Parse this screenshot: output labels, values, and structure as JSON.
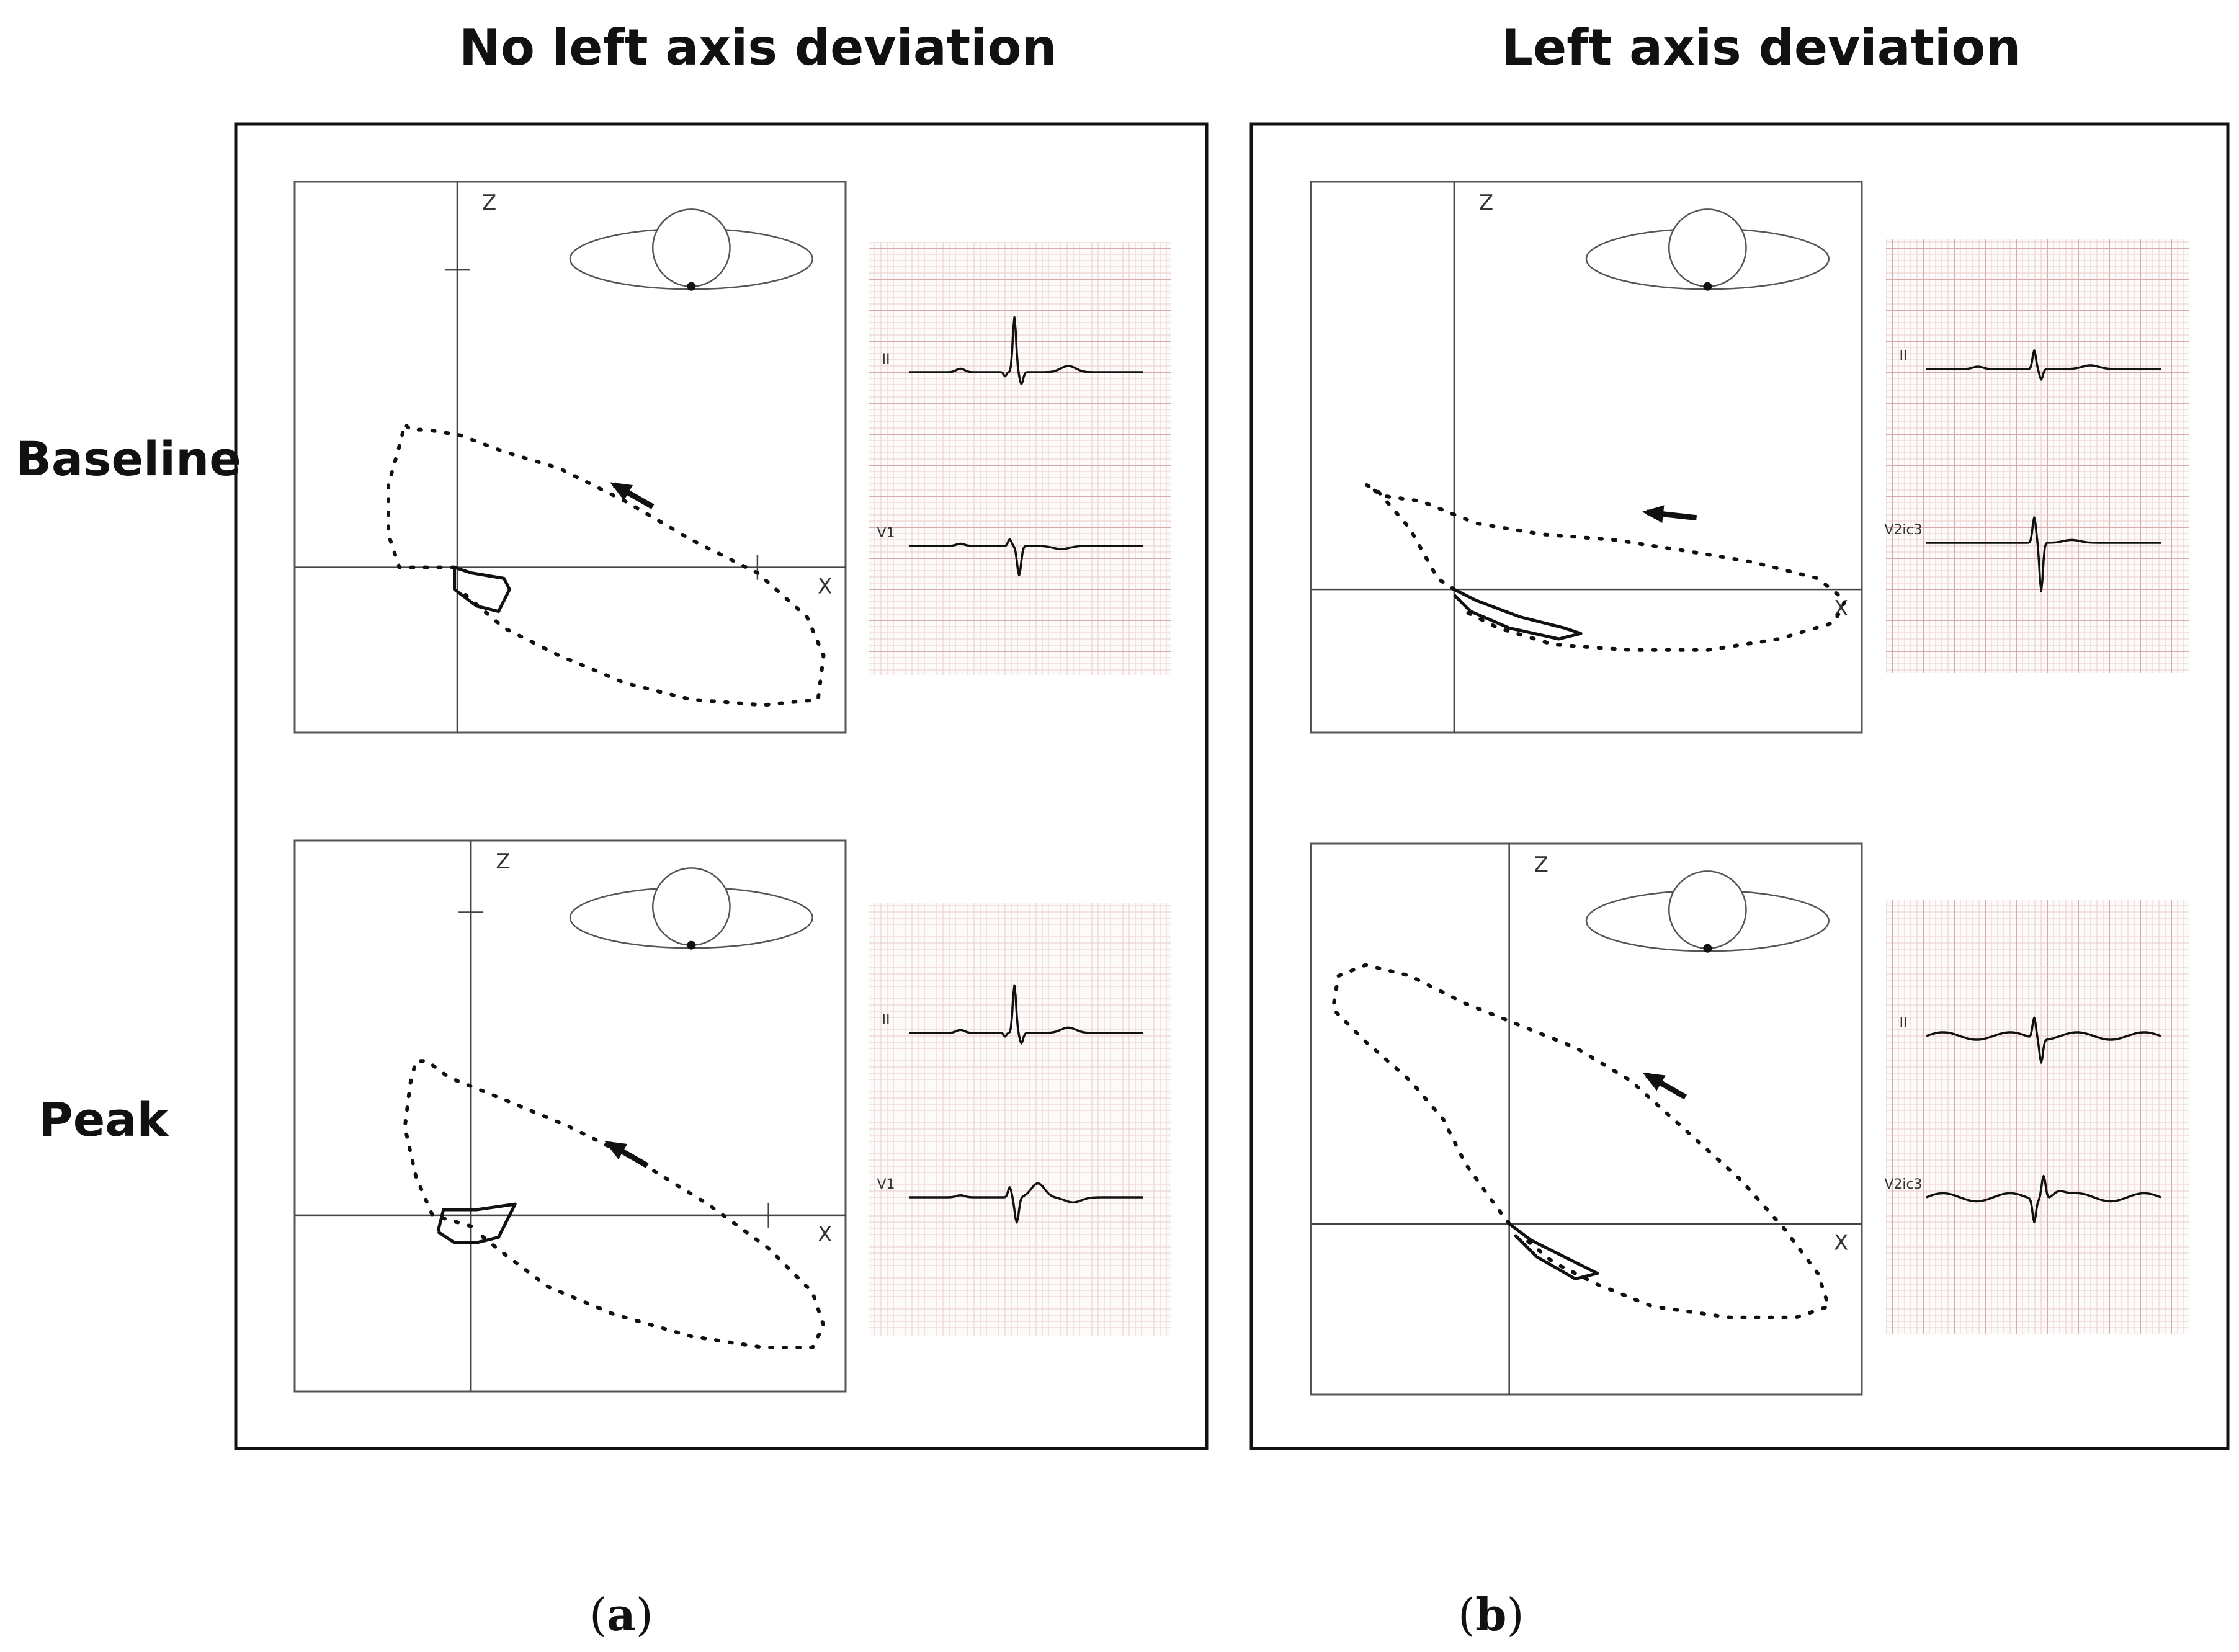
{
  "columns": [
    {
      "title": "No left axis deviation",
      "caption_letter": "a"
    },
    {
      "title": "Left axis deviation",
      "caption_letter": "b"
    }
  ],
  "rows": [
    {
      "label": "Baseline"
    },
    {
      "label": "Peak"
    }
  ],
  "axes": {
    "x": "X",
    "z": "Z"
  },
  "panels": [
    {
      "id": "a-baseline",
      "leads": [
        "II",
        "V1"
      ]
    },
    {
      "id": "a-peak",
      "leads": [
        "II",
        "V1"
      ]
    },
    {
      "id": "b-baseline",
      "leads": [
        "II",
        "V2ic3"
      ]
    },
    {
      "id": "b-peak",
      "leads": [
        "II",
        "V2ic3"
      ]
    }
  ],
  "colors": {
    "grid": "#e7c9c9",
    "grid_major": "#d9aaaa",
    "ink": "#111111",
    "frame": "#555555"
  }
}
